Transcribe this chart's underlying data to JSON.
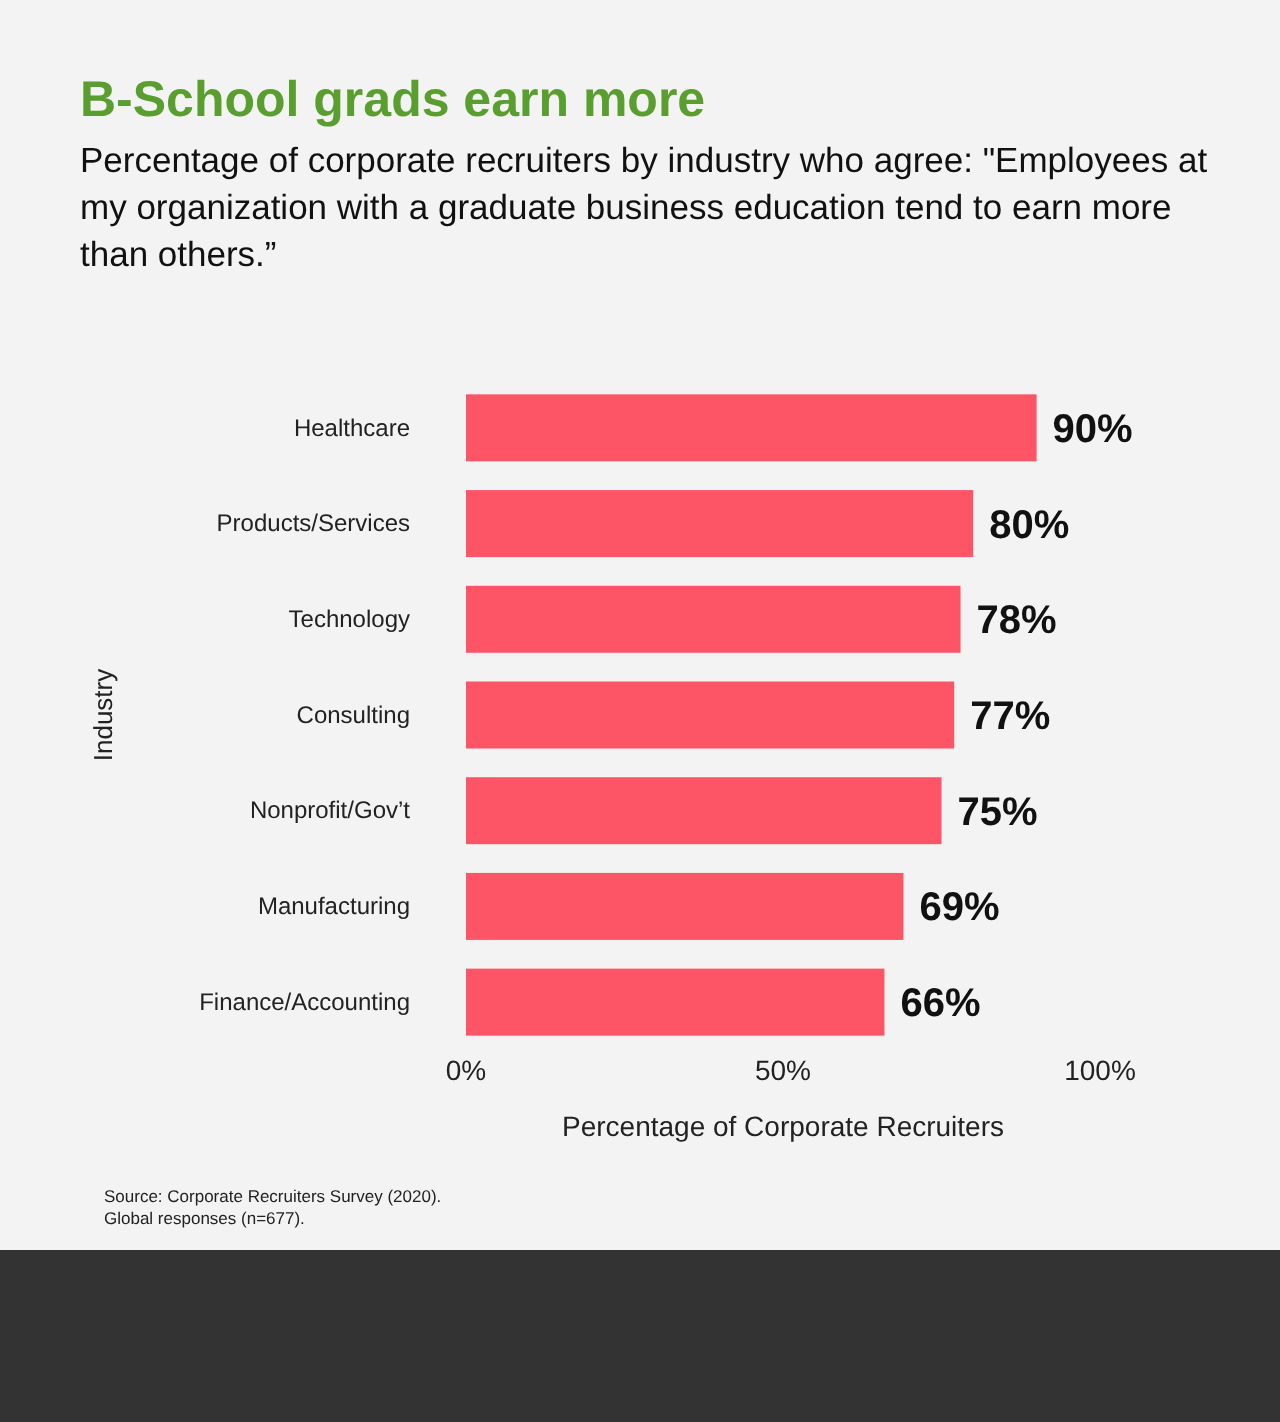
{
  "chart_data": {
    "type": "bar",
    "orientation": "horizontal",
    "title": "B-School grads earn more",
    "subtitle": "Percentage of corporate recruiters by industry who agree: \"Employees at my organization with a graduate business education tend to earn more than others.”",
    "xlabel": "Percentage of Corporate Recruiters",
    "ylabel": "Industry",
    "categories": [
      "Healthcare",
      "Products/Services",
      "Technology",
      "Consulting",
      "Nonprofit/Gov’t",
      "Manufacturing",
      "Finance/Accounting"
    ],
    "values": [
      90,
      80,
      78,
      77,
      75,
      69,
      66
    ],
    "value_labels": [
      "90%",
      "80%",
      "78%",
      "77%",
      "75%",
      "69%",
      "66%"
    ],
    "color": "#fd5565",
    "xlim": [
      0,
      100
    ],
    "xticks": [
      {
        "value": 0,
        "label": "0%"
      },
      {
        "value": 50,
        "label": "50%"
      },
      {
        "value": 100,
        "label": "100%"
      }
    ],
    "annotations": [
      "Source: Corporate Recruiters Survey (2020).",
      "Global responses (n=677)."
    ]
  }
}
